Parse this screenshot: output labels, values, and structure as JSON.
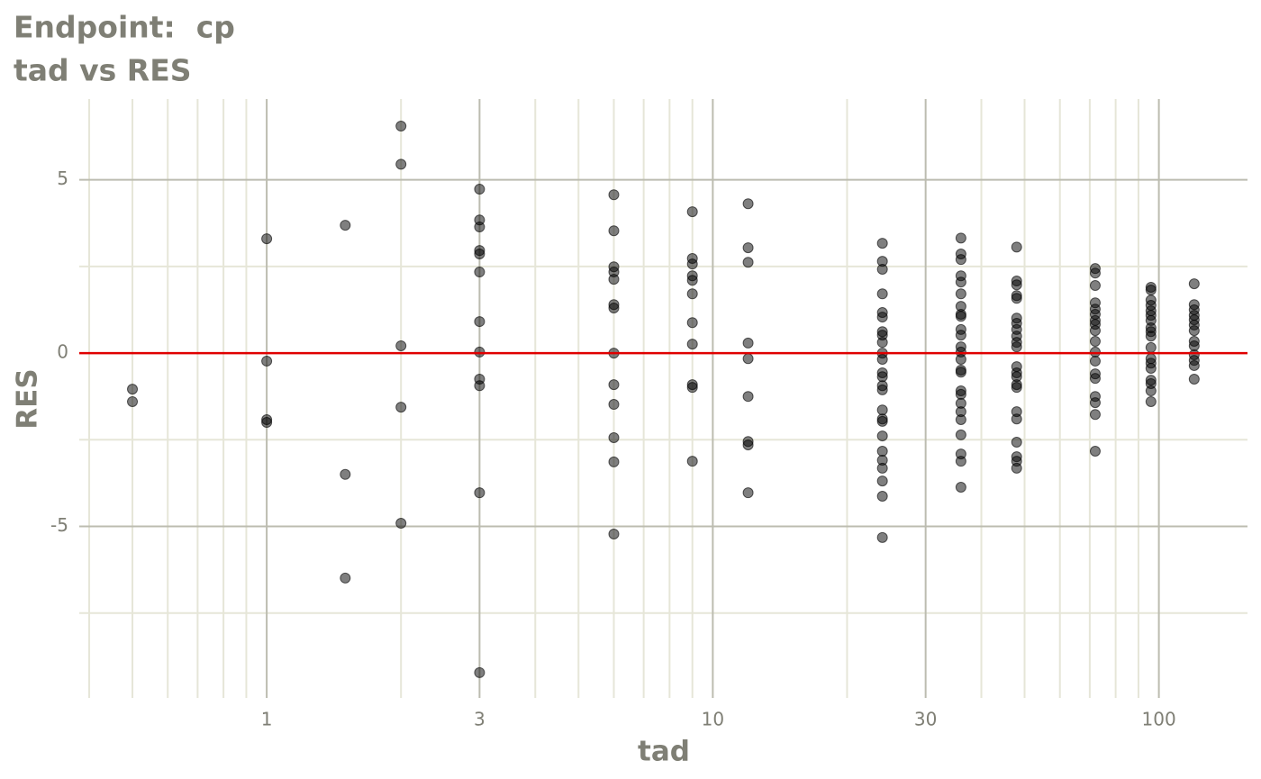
{
  "chart_data": {
    "type": "scatter",
    "title": "Endpoint:  cp",
    "subtitle": "tad vs RES",
    "x_label": "tad",
    "y_label": "RES",
    "xscale": "log",
    "xlim": [
      0.38,
      158
    ],
    "ylim": [
      -9.95,
      7.33
    ],
    "xticks": [
      1,
      3,
      10,
      30,
      100
    ],
    "xminor": [
      0.4,
      0.5,
      0.6,
      0.7,
      0.8,
      0.9,
      2,
      4,
      5,
      6,
      7,
      8,
      9,
      20,
      40,
      50,
      60,
      70,
      80,
      90
    ],
    "yticks": [
      -5,
      0,
      5
    ],
    "yminor": [
      -7.5,
      -2.5,
      2.5
    ],
    "grid": true,
    "color": "rgba(0,0,0,0.5)",
    "reference_line": {
      "y": 0,
      "color": "#e00000"
    },
    "x": [
      0.5,
      0.5,
      1,
      1,
      1,
      1,
      1.5,
      1.5,
      1.5,
      2,
      2,
      2,
      2,
      2,
      3,
      3,
      3,
      3,
      3,
      3,
      3,
      3,
      3,
      3,
      3,
      3,
      6,
      6,
      6,
      6,
      6,
      6,
      6,
      6,
      6,
      6,
      6,
      6,
      6,
      9,
      9,
      9,
      9,
      9,
      9,
      9,
      9,
      9,
      9,
      9,
      12,
      12,
      12,
      12,
      12,
      12,
      12,
      12,
      12,
      24,
      24,
      24,
      24,
      24,
      24,
      24,
      24,
      24,
      24,
      24,
      24,
      24,
      24,
      24,
      24,
      24,
      24,
      24,
      24,
      24,
      24,
      24,
      24,
      24,
      36,
      36,
      36,
      36,
      36,
      36,
      36,
      36,
      36,
      36,
      36,
      36,
      36,
      36,
      36,
      36,
      36,
      36,
      36,
      36,
      36,
      36,
      36,
      36,
      36,
      48,
      48,
      48,
      48,
      48,
      48,
      48,
      48,
      48,
      48,
      48,
      48,
      48,
      48,
      48,
      48,
      48,
      48,
      48,
      48,
      48,
      48,
      72,
      72,
      72,
      72,
      72,
      72,
      72,
      72,
      72,
      72,
      72,
      72,
      72,
      72,
      72,
      72,
      72,
      72,
      96,
      96,
      96,
      96,
      96,
      96,
      96,
      96,
      96,
      96,
      96,
      96,
      96,
      96,
      96,
      96,
      96,
      96,
      120,
      120,
      120,
      120,
      120,
      120,
      120,
      120,
      120,
      120,
      120,
      120,
      120
    ],
    "y": [
      -1.04,
      -1.4,
      3.3,
      -0.23,
      -1.92,
      -2.0,
      3.69,
      -3.5,
      -6.49,
      6.55,
      5.45,
      0.21,
      -1.56,
      -4.91,
      4.73,
      3.84,
      3.64,
      2.96,
      2.86,
      2.34,
      0.91,
      0.03,
      -0.75,
      -0.94,
      -4.03,
      -9.22,
      4.57,
      3.53,
      2.49,
      2.34,
      2.13,
      1.4,
      1.3,
      0,
      -0.91,
      -1.48,
      -2.44,
      -3.14,
      -5.22,
      4.08,
      2.73,
      2.57,
      2.23,
      2.1,
      1.71,
      0.88,
      0.26,
      -0.91,
      -0.99,
      -3.12,
      4.31,
      3.04,
      2.62,
      0.29,
      -0.16,
      -1.25,
      -2.55,
      -2.65,
      -4.03,
      3.17,
      2.65,
      2.42,
      1.71,
      1.17,
      1.04,
      0.62,
      0.52,
      0.31,
      0,
      -0.18,
      -0.57,
      -0.68,
      -0.94,
      -1.06,
      -1.64,
      -1.9,
      -1.97,
      -2.39,
      -2.83,
      -3.09,
      -3.32,
      -3.69,
      -4.13,
      -5.32,
      3.32,
      2.86,
      2.7,
      2.23,
      2.05,
      1.71,
      1.35,
      1.12,
      1.06,
      0.68,
      0.52,
      0.18,
      0.03,
      -0.18,
      -0.49,
      -0.55,
      -1.09,
      -1.19,
      -1.45,
      -1.69,
      -1.92,
      -2.36,
      -2.91,
      -3.12,
      -3.87,
      3.06,
      2.08,
      1.97,
      1.66,
      1.58,
      1.01,
      0.86,
      0.68,
      0.49,
      0.31,
      0.18,
      -0.39,
      -0.57,
      -0.68,
      -0.91,
      -0.99,
      -1.69,
      -1.9,
      -2.57,
      -2.99,
      -3.12,
      -3.32,
      2.44,
      2.31,
      1.95,
      1.45,
      1.27,
      1.12,
      0.94,
      0.83,
      0.65,
      0.34,
      0.03,
      -0.23,
      -0.6,
      -0.73,
      -1.25,
      -1.43,
      -1.77,
      -2.83,
      1.9,
      1.82,
      1.53,
      1.38,
      1.22,
      1.09,
      0.94,
      0.73,
      0.62,
      0.49,
      0.16,
      -0.16,
      -0.29,
      -0.44,
      -0.78,
      -0.88,
      -1.09,
      -1.4,
      2.0,
      1.4,
      1.25,
      1.09,
      0.96,
      0.81,
      0.65,
      0.34,
      0.21,
      -0.05,
      -0.21,
      -0.36,
      -0.75
    ]
  }
}
